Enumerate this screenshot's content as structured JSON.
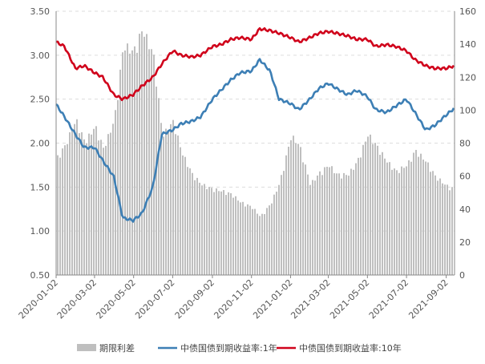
{
  "chart_data": {
    "type": "bar+line",
    "title": "",
    "xlabel": "",
    "ylabel_left": "",
    "ylabel_right": "",
    "y_left_lim": [
      0.5,
      3.5
    ],
    "y_left_ticks": [
      "0.50",
      "1.00",
      "1.50",
      "2.00",
      "2.50",
      "3.00",
      "3.50"
    ],
    "y_right_lim": [
      0,
      160
    ],
    "y_right_ticks": [
      "0",
      "20",
      "40",
      "60",
      "80",
      "100",
      "120",
      "140",
      "160"
    ],
    "x_range": [
      "2020-01-02",
      "2021-09-15"
    ],
    "x_ticks": [
      "2020-01-02",
      "2020-03-02",
      "2020-05-02",
      "2020-07-02",
      "2020-09-02",
      "2020-11-02",
      "2021-01-02",
      "2021-03-02",
      "2021-05-02",
      "2021-07-02",
      "2021-09-02"
    ],
    "grid": "horizontal-dashed",
    "legend_position": "bottom",
    "series": [
      {
        "name": "期限利差",
        "type": "bar",
        "axis": "right",
        "color": "#bfbfbf",
        "points": [
          [
            "2020-01-02",
            72
          ],
          [
            "2020-01-15",
            80
          ],
          [
            "2020-02-01",
            96
          ],
          [
            "2020-02-15",
            82
          ],
          [
            "2020-03-02",
            92
          ],
          [
            "2020-03-15",
            78
          ],
          [
            "2020-04-01",
            96
          ],
          [
            "2020-04-15",
            142
          ],
          [
            "2020-05-01",
            138
          ],
          [
            "2020-05-15",
            152
          ],
          [
            "2020-06-01",
            136
          ],
          [
            "2020-06-15",
            86
          ],
          [
            "2020-07-02",
            95
          ],
          [
            "2020-07-15",
            76
          ],
          [
            "2020-08-01",
            62
          ],
          [
            "2020-08-15",
            56
          ],
          [
            "2020-09-02",
            53
          ],
          [
            "2020-09-15",
            52
          ],
          [
            "2020-10-01",
            50
          ],
          [
            "2020-10-15",
            45
          ],
          [
            "2020-11-02",
            42
          ],
          [
            "2020-11-15",
            36
          ],
          [
            "2020-12-01",
            44
          ],
          [
            "2020-12-15",
            57
          ],
          [
            "2021-01-02",
            86
          ],
          [
            "2021-01-15",
            80
          ],
          [
            "2021-02-01",
            56
          ],
          [
            "2021-02-15",
            63
          ],
          [
            "2021-03-02",
            68
          ],
          [
            "2021-03-15",
            62
          ],
          [
            "2021-04-01",
            62
          ],
          [
            "2021-04-15",
            70
          ],
          [
            "2021-05-02",
            87
          ],
          [
            "2021-05-15",
            80
          ],
          [
            "2021-06-01",
            70
          ],
          [
            "2021-06-15",
            64
          ],
          [
            "2021-07-02",
            68
          ],
          [
            "2021-07-15",
            77
          ],
          [
            "2021-08-01",
            70
          ],
          [
            "2021-08-15",
            61
          ],
          [
            "2021-09-02",
            55
          ],
          [
            "2021-09-15",
            53
          ]
        ]
      },
      {
        "name": "中债国债到期收益率:1年",
        "type": "line",
        "axis": "left",
        "color": "#3d7fb5",
        "points": [
          [
            "2020-01-02",
            2.44
          ],
          [
            "2020-01-15",
            2.3
          ],
          [
            "2020-02-01",
            2.1
          ],
          [
            "2020-02-15",
            1.95
          ],
          [
            "2020-03-02",
            1.95
          ],
          [
            "2020-03-15",
            1.8
          ],
          [
            "2020-04-01",
            1.62
          ],
          [
            "2020-04-15",
            1.15
          ],
          [
            "2020-05-01",
            1.12
          ],
          [
            "2020-05-15",
            1.2
          ],
          [
            "2020-06-01",
            1.5
          ],
          [
            "2020-06-15",
            2.1
          ],
          [
            "2020-07-02",
            2.15
          ],
          [
            "2020-07-15",
            2.22
          ],
          [
            "2020-08-01",
            2.25
          ],
          [
            "2020-08-15",
            2.3
          ],
          [
            "2020-09-02",
            2.5
          ],
          [
            "2020-09-15",
            2.6
          ],
          [
            "2020-10-01",
            2.72
          ],
          [
            "2020-10-15",
            2.8
          ],
          [
            "2020-11-02",
            2.82
          ],
          [
            "2020-11-15",
            2.95
          ],
          [
            "2020-12-01",
            2.82
          ],
          [
            "2020-12-15",
            2.5
          ],
          [
            "2021-01-02",
            2.45
          ],
          [
            "2021-01-15",
            2.38
          ],
          [
            "2021-02-01",
            2.5
          ],
          [
            "2021-02-15",
            2.62
          ],
          [
            "2021-03-02",
            2.68
          ],
          [
            "2021-03-15",
            2.62
          ],
          [
            "2021-04-01",
            2.55
          ],
          [
            "2021-04-15",
            2.6
          ],
          [
            "2021-05-02",
            2.53
          ],
          [
            "2021-05-15",
            2.38
          ],
          [
            "2021-06-01",
            2.35
          ],
          [
            "2021-06-15",
            2.42
          ],
          [
            "2021-07-02",
            2.5
          ],
          [
            "2021-07-15",
            2.35
          ],
          [
            "2021-08-01",
            2.15
          ],
          [
            "2021-08-15",
            2.2
          ],
          [
            "2021-09-02",
            2.32
          ],
          [
            "2021-09-15",
            2.4
          ]
        ]
      },
      {
        "name": "中债国债到期收益率:10年",
        "type": "line",
        "axis": "left",
        "color": "#d0021b",
        "points": [
          [
            "2020-01-02",
            3.15
          ],
          [
            "2020-01-15",
            3.1
          ],
          [
            "2020-02-01",
            2.85
          ],
          [
            "2020-02-15",
            2.88
          ],
          [
            "2020-03-02",
            2.8
          ],
          [
            "2020-03-15",
            2.75
          ],
          [
            "2020-04-01",
            2.55
          ],
          [
            "2020-04-15",
            2.5
          ],
          [
            "2020-05-01",
            2.55
          ],
          [
            "2020-05-15",
            2.65
          ],
          [
            "2020-06-01",
            2.75
          ],
          [
            "2020-06-15",
            2.9
          ],
          [
            "2020-07-02",
            3.05
          ],
          [
            "2020-07-15",
            3.0
          ],
          [
            "2020-08-01",
            2.98
          ],
          [
            "2020-08-15",
            3.0
          ],
          [
            "2020-09-02",
            3.1
          ],
          [
            "2020-09-15",
            3.12
          ],
          [
            "2020-10-01",
            3.18
          ],
          [
            "2020-10-15",
            3.2
          ],
          [
            "2020-11-02",
            3.18
          ],
          [
            "2020-11-15",
            3.3
          ],
          [
            "2020-12-01",
            3.28
          ],
          [
            "2020-12-15",
            3.25
          ],
          [
            "2021-01-02",
            3.2
          ],
          [
            "2021-01-15",
            3.15
          ],
          [
            "2021-02-01",
            3.2
          ],
          [
            "2021-02-15",
            3.25
          ],
          [
            "2021-03-02",
            3.27
          ],
          [
            "2021-03-15",
            3.25
          ],
          [
            "2021-04-01",
            3.22
          ],
          [
            "2021-04-15",
            3.18
          ],
          [
            "2021-05-02",
            3.18
          ],
          [
            "2021-05-15",
            3.1
          ],
          [
            "2021-06-01",
            3.12
          ],
          [
            "2021-06-15",
            3.1
          ],
          [
            "2021-07-02",
            3.05
          ],
          [
            "2021-07-15",
            2.95
          ],
          [
            "2021-08-01",
            2.88
          ],
          [
            "2021-08-15",
            2.85
          ],
          [
            "2021-09-02",
            2.85
          ],
          [
            "2021-09-15",
            2.88
          ]
        ]
      }
    ]
  }
}
